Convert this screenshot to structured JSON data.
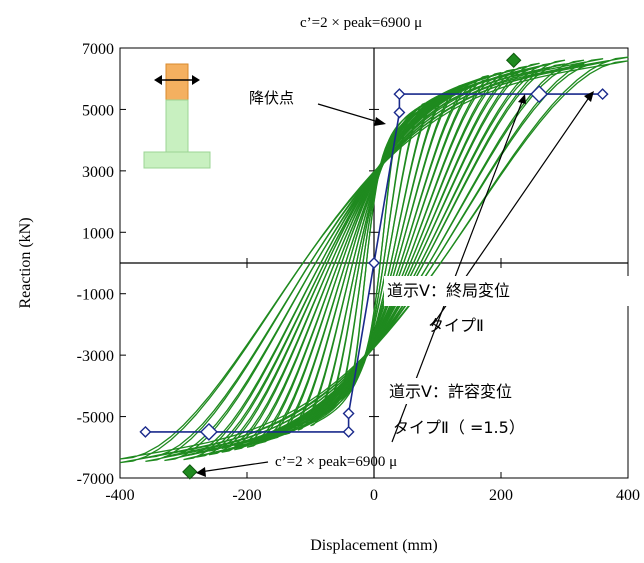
{
  "chart_data": {
    "type": "line",
    "xlabel": "Displacement (mm)",
    "ylabel": "Reaction (kN)",
    "xlim": [
      -400,
      400
    ],
    "ylim": [
      -7000,
      7000
    ],
    "x_ticks": [
      -400,
      -200,
      0,
      200,
      400
    ],
    "y_ticks": [
      -7000,
      -5000,
      -3000,
      -1000,
      1000,
      3000,
      5000,
      7000
    ],
    "grid": false,
    "legend": "none",
    "series": [
      {
        "role": "hysteresis",
        "color": "#1f8a1f",
        "envelope_positive": [
          [
            0,
            0
          ],
          [
            25,
            3200
          ],
          [
            45,
            4300
          ],
          [
            100,
            5300
          ],
          [
            200,
            6100
          ],
          [
            300,
            6600
          ],
          [
            400,
            6700
          ]
        ],
        "envelope_negative": [
          [
            0,
            0
          ],
          [
            -25,
            -3200
          ],
          [
            -45,
            -4300
          ],
          [
            -100,
            -5300
          ],
          [
            -200,
            -6000
          ],
          [
            -300,
            -6400
          ],
          [
            -400,
            -6500
          ]
        ],
        "cycle_peaks": [
          [
            40,
            4400
          ],
          [
            60,
            4900
          ],
          [
            80,
            5200
          ],
          [
            100,
            5400
          ],
          [
            120,
            5600
          ],
          [
            140,
            5800
          ],
          [
            160,
            5900
          ],
          [
            180,
            6100
          ],
          [
            200,
            6200
          ],
          [
            220,
            6300
          ],
          [
            240,
            6400
          ],
          [
            260,
            6500
          ],
          [
            280,
            6500
          ],
          [
            300,
            6600
          ],
          [
            330,
            6600
          ],
          [
            360,
            6650
          ],
          [
            400,
            6700
          ]
        ]
      },
      {
        "role": "skeleton",
        "color": "#1a2a8c",
        "points": [
          [
            -360,
            -5500
          ],
          [
            -260,
            -5500
          ],
          [
            -40,
            -5500
          ],
          [
            -40,
            -4900
          ],
          [
            0,
            0
          ],
          [
            40,
            4900
          ],
          [
            40,
            5500
          ],
          [
            260,
            5500
          ],
          [
            360,
            5500
          ]
        ],
        "marker_points": [
          [
            -360,
            -5500
          ],
          [
            -260,
            -5500
          ],
          [
            -40,
            -5500
          ],
          [
            -40,
            -4900
          ],
          [
            0,
            0
          ],
          [
            40,
            4900
          ],
          [
            40,
            5500
          ],
          [
            260,
            5500
          ],
          [
            360,
            5500
          ]
        ],
        "large_markers": [
          [
            -260,
            -5500
          ],
          [
            260,
            5500
          ]
        ]
      }
    ],
    "peak_markers": [
      [
        220,
        6600
      ],
      [
        -290,
        -6800
      ]
    ],
    "annotations": {
      "yield_point": "降伏点",
      "top_ultimate": "c’=2 ×    peak=6900 μ",
      "bottom_ultimate": "c’=2 ×    peak=6900 μ",
      "ultimate_line1": "道示Ⅴ：終局変位",
      "ultimate_line2": "タイプⅡ",
      "allowable_line1": "道示Ⅴ：許容変位",
      "allowable_line2": "タイプⅡ（    =1.5）"
    },
    "colors": {
      "hysteresis": "#1f8a1f",
      "skeleton": "#1a2a8c",
      "marker_fill": "#ffffff",
      "pier_fill": "#c8f0c0",
      "pier_top": "#f4b060"
    }
  }
}
